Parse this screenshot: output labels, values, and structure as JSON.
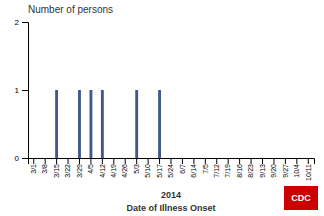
{
  "chart_data": {
    "type": "bar",
    "ylabel": "Number of persons",
    "xlabel": "Date of Illness Onset",
    "annotations": [
      "2014",
      "CDC"
    ],
    "categories": [
      "3/1",
      "3/8",
      "3/15",
      "3/22",
      "3/29",
      "4/5",
      "4/12",
      "4/19",
      "4/26",
      "5/3",
      "5/10",
      "5/17",
      "5/24",
      "6/7",
      "6/14",
      "7/5",
      "7/12",
      "7/19",
      "8/16",
      "8/23",
      "9/13",
      "9/20",
      "9/27",
      "10/4",
      "10/11"
    ],
    "values": [
      null,
      null,
      1,
      null,
      1,
      1,
      1,
      null,
      null,
      1,
      null,
      1,
      null,
      null,
      null,
      null,
      null,
      null,
      null,
      null,
      null,
      null,
      null,
      null,
      null
    ],
    "color": "#3d5a8a",
    "ylim": [
      0,
      2
    ],
    "yticks": [
      0,
      1,
      2
    ],
    "grid": false
  }
}
